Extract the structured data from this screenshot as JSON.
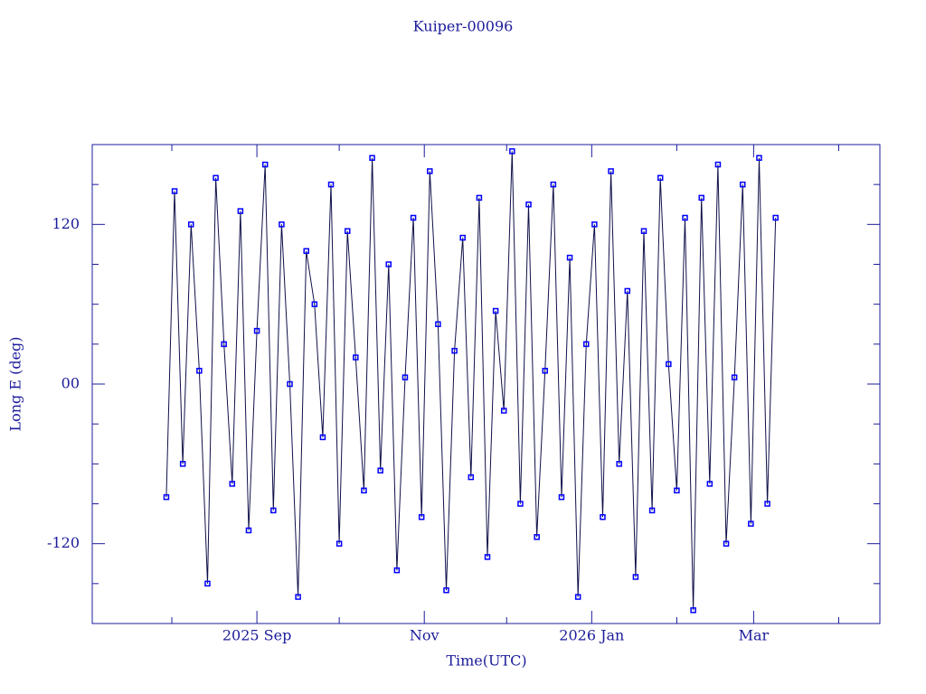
{
  "chart_data": {
    "type": "line",
    "title": "Kuiper-00096",
    "x_label": "Time(UTC)",
    "y_label": "Long E (deg)",
    "x": [
      "2025-07-30",
      "2025-08-02",
      "2025-08-05",
      "2025-08-08",
      "2025-08-11",
      "2025-08-14",
      "2025-08-17",
      "2025-08-20",
      "2025-08-23",
      "2025-08-26",
      "2025-08-29",
      "2025-09-01",
      "2025-09-04",
      "2025-09-07",
      "2025-09-10",
      "2025-09-13",
      "2025-09-16",
      "2025-09-19",
      "2025-09-22",
      "2025-09-25",
      "2025-09-28",
      "2025-10-01",
      "2025-10-04",
      "2025-10-07",
      "2025-10-10",
      "2025-10-13",
      "2025-10-16",
      "2025-10-19",
      "2025-10-22",
      "2025-10-25",
      "2025-10-28",
      "2025-10-31",
      "2025-11-03",
      "2025-11-06",
      "2025-11-09",
      "2025-11-12",
      "2025-11-15",
      "2025-11-18",
      "2025-11-21",
      "2025-11-24",
      "2025-11-27",
      "2025-11-30",
      "2025-12-03",
      "2025-12-06",
      "2025-12-09",
      "2025-12-12",
      "2025-12-15",
      "2025-12-18",
      "2025-12-21",
      "2025-12-24",
      "2025-12-27",
      "2025-12-30",
      "2026-01-02",
      "2026-01-05",
      "2026-01-08",
      "2026-01-11",
      "2026-01-14",
      "2026-01-17",
      "2026-01-20",
      "2026-01-23",
      "2026-01-26",
      "2026-01-29",
      "2026-02-01",
      "2026-02-04",
      "2026-02-07",
      "2026-02-10",
      "2026-02-13",
      "2026-02-16",
      "2026-02-19",
      "2026-02-22",
      "2026-02-25",
      "2026-02-28",
      "2026-03-03",
      "2026-03-06",
      "2026-03-09"
    ],
    "series": [
      {
        "name": "Kuiper-00096",
        "color": "#0000ff",
        "line_color": "#10104a",
        "values": [
          -85,
          145,
          -60,
          120,
          10,
          -150,
          155,
          30,
          -75,
          130,
          -110,
          40,
          165,
          -95,
          120,
          0,
          -160,
          100,
          60,
          -40,
          150,
          -120,
          115,
          20,
          -80,
          170,
          -65,
          90,
          -140,
          5,
          125,
          -100,
          160,
          45,
          -155,
          25,
          110,
          -70,
          140,
          -130,
          55,
          -20,
          175,
          -90,
          135,
          -115,
          10,
          150,
          -85,
          95,
          -160,
          30,
          120,
          -100,
          160,
          -60,
          70,
          -145,
          115,
          -95,
          155,
          15,
          -80,
          125,
          -170,
          140,
          -75,
          165,
          -120,
          5,
          150,
          -105,
          170,
          -90,
          125
        ]
      }
    ],
    "xlim": [
      "2025-07-03",
      "2026-04-16"
    ],
    "xticks": [
      {
        "value": "2025-09-01",
        "label": "2025 Sep"
      },
      {
        "value": "2025-11-01",
        "label": "Nov"
      },
      {
        "value": "2026-01-01",
        "label": "2026 Jan"
      },
      {
        "value": "2026-03-01",
        "label": "Mar"
      }
    ],
    "xminorticks": [
      "2025-08-01",
      "2025-10-01",
      "2025-12-01",
      "2026-02-01",
      "2026-04-01"
    ],
    "ylim": [
      -180,
      180
    ],
    "yticks": [
      -120,
      {
        "value": 0,
        "label": "00"
      },
      120
    ],
    "yminorticks": [
      -150,
      -90,
      -60,
      -30,
      30,
      60,
      90,
      150
    ]
  }
}
